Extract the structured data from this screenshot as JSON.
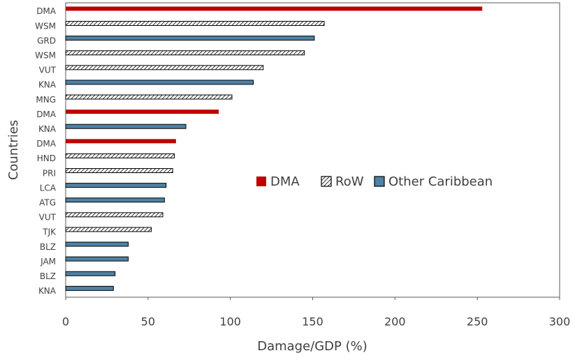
{
  "chart_data": {
    "type": "hbar",
    "x_label": "Damage/GDP (%)",
    "y_label": "Countries",
    "categories": [
      "DMA",
      "WSM",
      "GRD",
      "WSM",
      "VUT",
      "KNA",
      "MNG",
      "DMA",
      "KNA",
      "DMA",
      "HND",
      "PRI",
      "LCA",
      "ATG",
      "VUT",
      "TJK",
      "BLZ",
      "JAM",
      "BLZ",
      "KNA"
    ],
    "series": [
      {
        "name": "DMA",
        "color": "#c00000",
        "hatch": false,
        "values": [
          253,
          null,
          null,
          null,
          null,
          null,
          null,
          93,
          null,
          67,
          null,
          null,
          null,
          null,
          null,
          null,
          null,
          null,
          null,
          null
        ]
      },
      {
        "name": "RoW",
        "color": "#ffffff",
        "hatch": true,
        "values": [
          null,
          157,
          null,
          145,
          120,
          null,
          101,
          null,
          null,
          null,
          66,
          65,
          null,
          null,
          59,
          52,
          null,
          null,
          null,
          null
        ]
      },
      {
        "name": "Other Caribbean",
        "color": "#4e81a4",
        "hatch": false,
        "values": [
          null,
          null,
          151,
          null,
          null,
          114,
          null,
          null,
          73,
          null,
          null,
          null,
          61,
          60,
          null,
          null,
          38,
          38,
          30,
          29
        ]
      }
    ],
    "xlim": [
      0,
      300
    ],
    "xticks": [
      0,
      50,
      100,
      150,
      200,
      250,
      300
    ]
  }
}
